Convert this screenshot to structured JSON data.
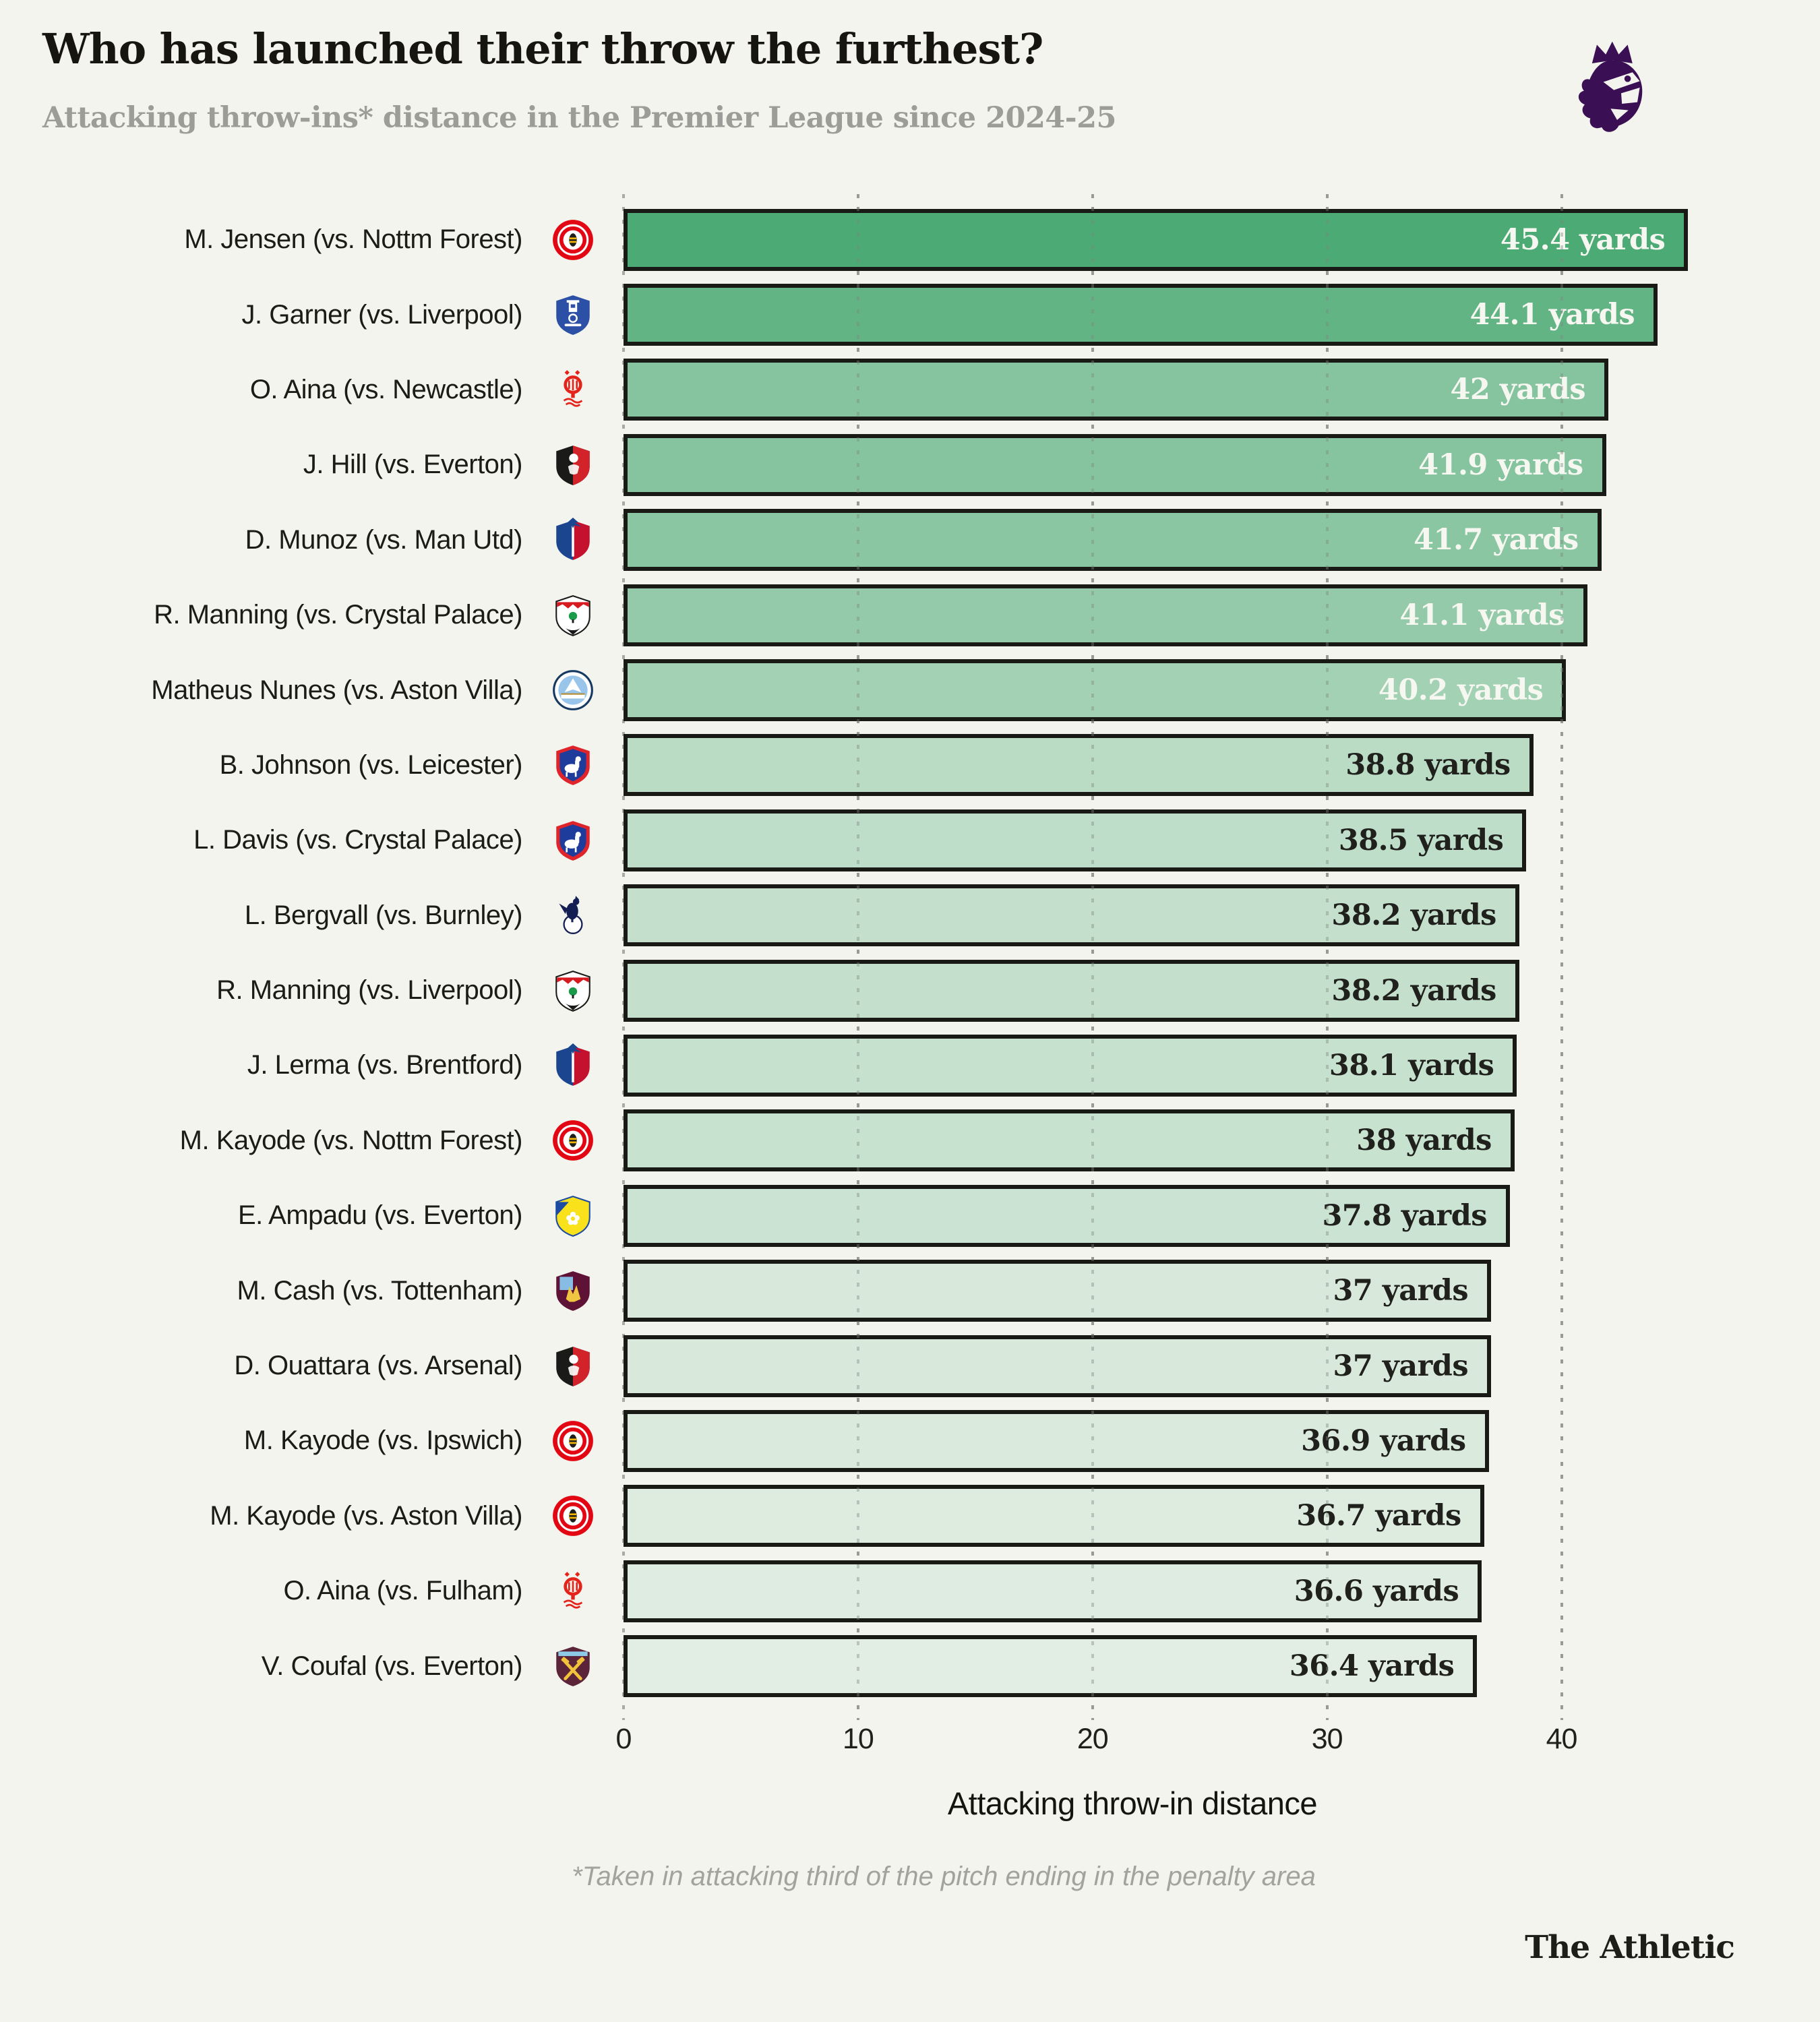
{
  "header": {
    "title": "Who has launched their throw the furthest?",
    "subtitle": "Attacking throw-ins* distance in the Premier League since 2024-25"
  },
  "branding": {
    "league_logo": "premier-league-lion",
    "logo_color": "#3b0f53",
    "wordmark": "The Athletic"
  },
  "footnote": "*Taken in attacking third of the pitch ending in the penalty area",
  "chart_data": {
    "type": "bar",
    "orientation": "horizontal",
    "title": "Who has launched their throw the furthest?",
    "subtitle": "Attacking throw-ins* distance in the Premier League since 2024-25",
    "xlabel": "Attacking throw-in distance",
    "unit": "yards",
    "x_ticks": [
      0,
      10,
      20,
      30,
      40
    ],
    "xlim": [
      0,
      47
    ],
    "gridlines": [
      10,
      20,
      30,
      40
    ],
    "grid_style": "dotted",
    "legend": "none",
    "bar_border_color": "#191916",
    "color_scale": {
      "min_value": 36.4,
      "max_value": 45.4,
      "min_color": "#e2eee3",
      "max_color": "#4caa74"
    },
    "rows": [
      {
        "label": "M. Jensen (vs. Nottm Forest)",
        "team": "brentford",
        "value": 45.4,
        "value_label": "45.4 yards",
        "value_text": "light"
      },
      {
        "label": "J. Garner (vs. Liverpool)",
        "team": "everton",
        "value": 44.1,
        "value_label": "44.1 yards",
        "value_text": "light"
      },
      {
        "label": "O. Aina (vs. Newcastle)",
        "team": "nottm-forest",
        "value": 42,
        "value_label": "42 yards",
        "value_text": "light"
      },
      {
        "label": "J. Hill (vs. Everton)",
        "team": "bournemouth",
        "value": 41.9,
        "value_label": "41.9 yards",
        "value_text": "light"
      },
      {
        "label": "D. Munoz (vs. Man Utd)",
        "team": "crystal-palace",
        "value": 41.7,
        "value_label": "41.7 yards",
        "value_text": "light"
      },
      {
        "label": "R. Manning (vs. Crystal Palace)",
        "team": "southampton",
        "value": 41.1,
        "value_label": "41.1 yards",
        "value_text": "light"
      },
      {
        "label": "Matheus Nunes (vs. Aston Villa)",
        "team": "man-city",
        "value": 40.2,
        "value_label": "40.2 yards",
        "value_text": "light"
      },
      {
        "label": "B. Johnson (vs. Leicester)",
        "team": "ipswich",
        "value": 38.8,
        "value_label": "38.8 yards",
        "value_text": "dark"
      },
      {
        "label": "L. Davis (vs. Crystal Palace)",
        "team": "ipswich",
        "value": 38.5,
        "value_label": "38.5 yards",
        "value_text": "dark"
      },
      {
        "label": "L. Bergvall (vs. Burnley)",
        "team": "tottenham",
        "value": 38.2,
        "value_label": "38.2 yards",
        "value_text": "dark"
      },
      {
        "label": "R. Manning (vs. Liverpool)",
        "team": "southampton",
        "value": 38.2,
        "value_label": "38.2 yards",
        "value_text": "dark"
      },
      {
        "label": "J. Lerma (vs. Brentford)",
        "team": "crystal-palace",
        "value": 38.1,
        "value_label": "38.1 yards",
        "value_text": "dark"
      },
      {
        "label": "M. Kayode (vs. Nottm Forest)",
        "team": "brentford",
        "value": 38,
        "value_label": "38 yards",
        "value_text": "dark"
      },
      {
        "label": "E. Ampadu (vs. Everton)",
        "team": "leeds",
        "value": 37.8,
        "value_label": "37.8 yards",
        "value_text": "dark"
      },
      {
        "label": "M. Cash (vs. Tottenham)",
        "team": "aston-villa",
        "value": 37,
        "value_label": "37 yards",
        "value_text": "dark"
      },
      {
        "label": "D. Ouattara (vs. Arsenal)",
        "team": "bournemouth",
        "value": 37,
        "value_label": "37 yards",
        "value_text": "dark"
      },
      {
        "label": "M. Kayode (vs. Ipswich)",
        "team": "brentford",
        "value": 36.9,
        "value_label": "36.9 yards",
        "value_text": "dark"
      },
      {
        "label": "M. Kayode (vs. Aston Villa)",
        "team": "brentford",
        "value": 36.7,
        "value_label": "36.7 yards",
        "value_text": "dark"
      },
      {
        "label": "O. Aina (vs. Fulham)",
        "team": "nottm-forest",
        "value": 36.6,
        "value_label": "36.6 yards",
        "value_text": "dark"
      },
      {
        "label": "V. Coufal (vs. Everton)",
        "team": "west-ham",
        "value": 36.4,
        "value_label": "36.4 yards",
        "value_text": "dark"
      }
    ]
  },
  "badges": {
    "brentford": {
      "primary": "#e30613",
      "secondary": "#ffffff",
      "detail": "#1d1d1b",
      "accent": "#f6b500"
    },
    "everton": {
      "primary": "#2b50a5",
      "secondary": "#ffffff",
      "detail": "#ffffff",
      "accent": "#ffffff"
    },
    "nottm-forest": {
      "primary": "#e4231b",
      "secondary": "#ffffff",
      "detail": "#e4231b",
      "accent": "#e4231b"
    },
    "bournemouth": {
      "primary": "#1a1a18",
      "secondary": "#d2232a",
      "detail": "#ffffff",
      "accent": "#ffffff"
    },
    "crystal-palace": {
      "primary": "#1b458f",
      "secondary": "#c4122e",
      "detail": "#ffffff",
      "accent": "#1b458f"
    },
    "southampton": {
      "primary": "#ffffff",
      "secondary": "#d71920",
      "detail": "#1a9a4a",
      "accent": "#1a1a18"
    },
    "man-city": {
      "primary": "#98c5e9",
      "secondary": "#ffffff",
      "detail": "#163962",
      "accent": "#b58b2d"
    },
    "ipswich": {
      "primary": "#1d3c9c",
      "secondary": "#e0242c",
      "detail": "#ffffff",
      "accent": "#ffffff"
    },
    "tottenham": {
      "primary": "#ffffff",
      "secondary": "#131f53",
      "detail": "#131f53",
      "accent": "#131f53"
    },
    "leeds": {
      "primary": "#f9e11c",
      "secondary": "#1d4ba3",
      "detail": "#ffffff",
      "accent": "#1d4ba3"
    },
    "aston-villa": {
      "primary": "#5e1236",
      "secondary": "#87bde5",
      "detail": "#f0c541",
      "accent": "#f0c541"
    },
    "west-ham": {
      "primary": "#5c2439",
      "secondary": "#f3c23b",
      "detail": "#8ccae8",
      "accent": "#f3c23b"
    }
  },
  "value_text_colors": {
    "light": "#f6f7f1",
    "dark": "#20201d"
  }
}
